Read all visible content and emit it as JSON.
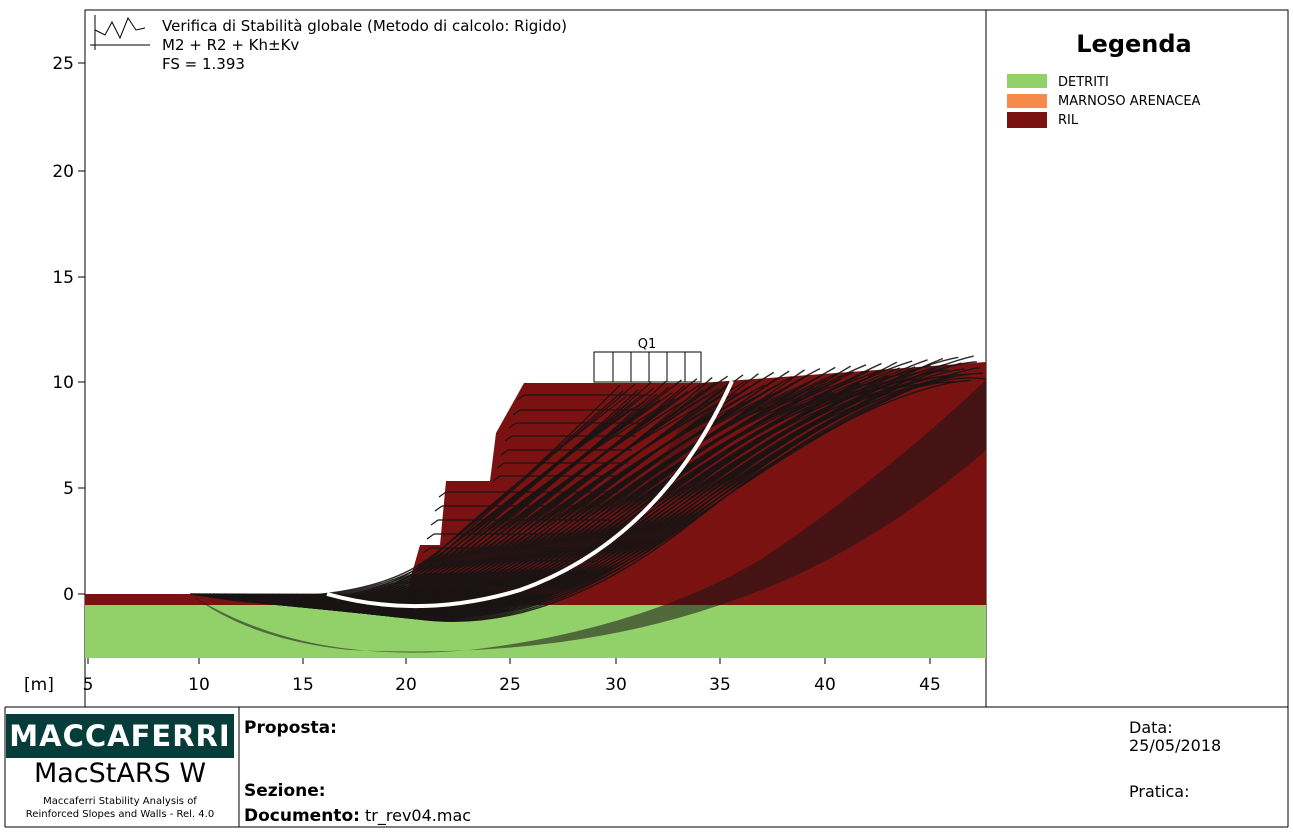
{
  "header": {
    "title": "Verifica di Stabilità globale (Metodo di calcolo: Rigido)",
    "combination": "M2 + R2 + Kh±Kv",
    "fs": "FS = 1.393"
  },
  "legend": {
    "title": "Legenda",
    "items": [
      {
        "label": "DETRITI",
        "color": "#92d069"
      },
      {
        "label": "MARNOSO ARENACEA",
        "color": "#f58a4b"
      },
      {
        "label": "RIL",
        "color": "#7b1212"
      }
    ]
  },
  "axes": {
    "unit_label": "[m]",
    "x_ticks": [
      "5",
      "10",
      "15",
      "20",
      "25",
      "30",
      "35",
      "40",
      "45"
    ],
    "y_ticks": [
      "25",
      "20",
      "15",
      "10",
      "5",
      "0"
    ]
  },
  "load": {
    "label": "Q1"
  },
  "colors": {
    "ril": "#7b1212",
    "detriti": "#92d069",
    "surfaces": "#1a1414",
    "critical": "#ffffff"
  },
  "footer": {
    "brand": "MACCAFERRI",
    "app_name": "MacStARS W",
    "app_desc_line1": "Maccaferri Stability Analysis of",
    "app_desc_line2": "Reinforced Slopes and Walls - Rel. 4.0",
    "proposta_label": "Proposta:",
    "sezione_label": "Sezione:",
    "documento_label": "Documento:",
    "documento_value": "tr_rev04.mac",
    "data_label": "Data:",
    "data_value": "25/05/2018",
    "pratica_label": "Pratica:"
  }
}
